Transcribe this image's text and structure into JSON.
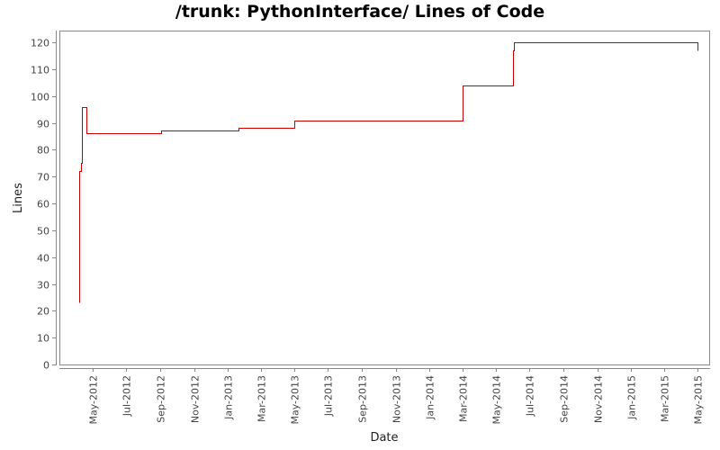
{
  "chart_data": {
    "type": "line",
    "title": "/trunk: PythonInterface/ Lines of Code",
    "xlabel": "Date",
    "ylabel": "Lines",
    "ylim": [
      0,
      124
    ],
    "yticks": [
      0,
      10,
      20,
      30,
      40,
      50,
      60,
      70,
      80,
      90,
      100,
      110,
      120
    ],
    "xticks": [
      "May-2012",
      "Jul-2012",
      "Sep-2012",
      "Nov-2012",
      "Jan-2013",
      "Mar-2013",
      "May-2013",
      "Jul-2013",
      "Sep-2013",
      "Nov-2013",
      "Jan-2014",
      "Mar-2014",
      "May-2014",
      "Jul-2014",
      "Sep-2014",
      "Nov-2014",
      "Jan-2015",
      "Mar-2015",
      "May-2015"
    ],
    "grid": false,
    "legend": "none",
    "line_color": "#cc0000",
    "step": true,
    "series": [
      {
        "name": "Lines",
        "points": [
          {
            "date": "2012-04-07",
            "value": 23
          },
          {
            "date": "2012-04-07",
            "value": 72
          },
          {
            "date": "2012-04-10",
            "value": 75
          },
          {
            "date": "2012-04-12",
            "value": 96
          },
          {
            "date": "2012-04-20",
            "value": 86
          },
          {
            "date": "2012-09-02",
            "value": 87
          },
          {
            "date": "2013-01-20",
            "value": 88
          },
          {
            "date": "2013-05-01",
            "value": 91
          },
          {
            "date": "2014-03-01",
            "value": 104
          },
          {
            "date": "2014-06-01",
            "value": 117
          },
          {
            "date": "2014-06-02",
            "value": 120
          },
          {
            "date": "2015-05-01",
            "value": 117
          }
        ]
      }
    ]
  }
}
